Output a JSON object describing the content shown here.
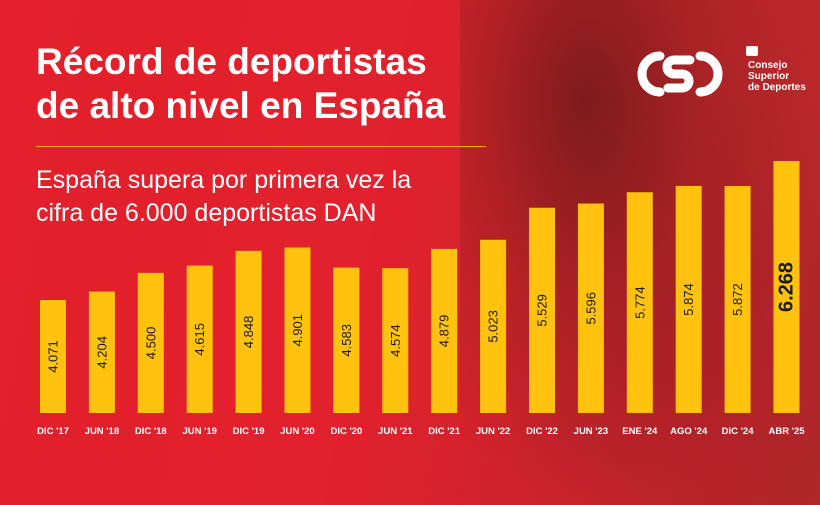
{
  "header": {
    "title_line1": "Récord de deportistas",
    "title_line2": "de alto nivel en España",
    "subtitle_line1": "España supera por primera vez la",
    "subtitle_line2": "cifra de 6.000 deportistas DAN"
  },
  "logo": {
    "mark": "CSD",
    "line1": "Consejo",
    "line2": "Superior",
    "line3": "de Deportes"
  },
  "colors": {
    "background": "#e3202c",
    "bar": "#ffc20e",
    "bar_text": "#1a1a1a",
    "tick_text": "#ffffff"
  },
  "chart_data": {
    "type": "bar",
    "categories": [
      "DIC '17",
      "JUN '18",
      "DIC '18",
      "JUN '19",
      "DIC '19",
      "JUN '20",
      "DIC '20",
      "JUN '21",
      "DIC '21",
      "JUN '22",
      "DIC '22",
      "JUN '23",
      "ENE '24",
      "AGO '24",
      "DIC '24",
      "ABR '25"
    ],
    "values": [
      4071,
      4204,
      4500,
      4615,
      4848,
      4901,
      4583,
      4574,
      4879,
      5023,
      5529,
      5596,
      5774,
      5874,
      5872,
      6268
    ],
    "labels": [
      "4.071",
      "4.204",
      "4.500",
      "4.615",
      "4.848",
      "4.901",
      "4.583",
      "4.574",
      "4.879",
      "5.023",
      "5.529",
      "5.596",
      "5.774",
      "5.874",
      "5.872",
      "6.268"
    ],
    "highlight_last": true,
    "title": "",
    "xlabel": "",
    "ylabel": "",
    "grid": false
  }
}
